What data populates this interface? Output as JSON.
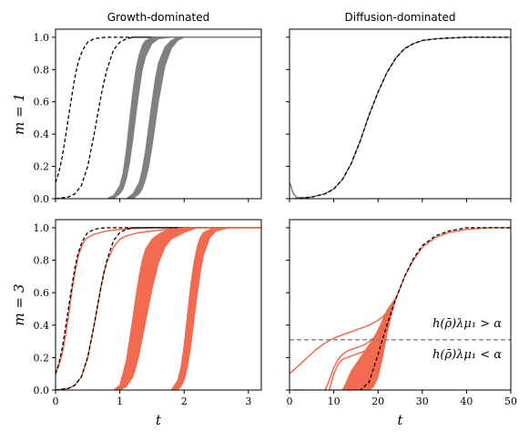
{
  "chart_data": [
    {
      "type": "line",
      "title": "Growth-dominated",
      "xlabel": "",
      "ylabel": "m = 1",
      "xlim": [
        0,
        3.2
      ],
      "ylim": [
        0,
        1.05
      ],
      "xticks": [
        "0",
        "1",
        "2",
        "3"
      ],
      "yticks": [
        "0.0",
        "0.2",
        "0.4",
        "0.6",
        "0.8",
        "1.0"
      ],
      "show_xtick_labels": false,
      "show_ytick_labels": true,
      "grid": false,
      "series_color": "#808080",
      "series": [
        {
          "style": "dashed",
          "color": "#000000",
          "x": [
            0,
            0.05,
            0.1,
            0.15,
            0.2,
            0.25,
            0.3,
            0.35,
            0.4,
            0.45,
            0.5,
            0.6,
            0.7,
            0.8,
            1.0,
            3.2
          ],
          "y": [
            0.1,
            0.16,
            0.25,
            0.37,
            0.5,
            0.63,
            0.75,
            0.84,
            0.9,
            0.94,
            0.97,
            0.99,
            0.997,
            1.0,
            1.0,
            1.0
          ]
        },
        {
          "style": "dashed",
          "color": "#000000",
          "x": [
            0,
            0.2,
            0.3,
            0.4,
            0.5,
            0.6,
            0.7,
            0.75,
            0.8,
            0.9,
            1.0,
            1.1,
            1.2,
            1.4,
            3.2
          ],
          "y": [
            0.0,
            0.01,
            0.03,
            0.08,
            0.2,
            0.4,
            0.62,
            0.72,
            0.8,
            0.92,
            0.97,
            0.99,
            1.0,
            1.0,
            1.0
          ]
        },
        {
          "style": "band",
          "color": "#808080",
          "x": [
            0,
            0.8,
            0.9,
            1.0,
            1.05,
            1.1,
            1.15,
            1.2,
            1.25,
            1.3,
            1.35,
            1.4,
            1.5,
            1.6,
            1.8,
            3.2
          ],
          "y_low": [
            0,
            0.0,
            0.0,
            0.03,
            0.06,
            0.12,
            0.22,
            0.36,
            0.52,
            0.67,
            0.8,
            0.88,
            0.96,
            0.99,
            1.0,
            1.0
          ],
          "y_high": [
            0,
            0.0,
            0.02,
            0.08,
            0.16,
            0.3,
            0.48,
            0.66,
            0.8,
            0.89,
            0.95,
            0.98,
            1.0,
            1.0,
            1.0,
            1.0
          ]
        },
        {
          "style": "band",
          "color": "#808080",
          "x": [
            0,
            1.1,
            1.2,
            1.3,
            1.35,
            1.4,
            1.45,
            1.5,
            1.55,
            1.6,
            1.7,
            1.8,
            1.9,
            2.0,
            2.2,
            3.2
          ],
          "y_low": [
            0,
            0.0,
            0.0,
            0.03,
            0.06,
            0.12,
            0.2,
            0.32,
            0.46,
            0.6,
            0.82,
            0.93,
            0.98,
            1.0,
            1.0,
            1.0
          ],
          "y_high": [
            0,
            0.0,
            0.03,
            0.1,
            0.18,
            0.3,
            0.45,
            0.6,
            0.74,
            0.84,
            0.94,
            0.98,
            1.0,
            1.0,
            1.0,
            1.0
          ]
        }
      ]
    },
    {
      "type": "line",
      "title": "Diffusion-dominated",
      "xlabel": "",
      "ylabel": "",
      "xlim": [
        0,
        50
      ],
      "ylim": [
        0,
        1.05
      ],
      "xticks": [
        "0",
        "10",
        "20",
        "30",
        "40",
        "50"
      ],
      "yticks": [
        "0.0",
        "0.2",
        "0.4",
        "0.6",
        "0.8",
        "1.0"
      ],
      "show_xtick_labels": false,
      "show_ytick_labels": false,
      "grid": false,
      "series": [
        {
          "style": "solid",
          "color": "#808080",
          "x": [
            0,
            0.3,
            0.6,
            1,
            1.5,
            2,
            3,
            5,
            8,
            10,
            12,
            14,
            16,
            18,
            20,
            22,
            24,
            26,
            28,
            30,
            33,
            36,
            40,
            45,
            50
          ],
          "y": [
            0.1,
            0.08,
            0.05,
            0.025,
            0.012,
            0.006,
            0.006,
            0.01,
            0.03,
            0.06,
            0.12,
            0.22,
            0.36,
            0.52,
            0.66,
            0.78,
            0.87,
            0.93,
            0.96,
            0.98,
            0.99,
            0.995,
            1.0,
            1.0,
            1.0
          ]
        },
        {
          "style": "dashed",
          "color": "#000000",
          "x": [
            1,
            3,
            5,
            8,
            10,
            12,
            14,
            16,
            18,
            20,
            22,
            24,
            26,
            28,
            30,
            33,
            36,
            40,
            45,
            50
          ],
          "y": [
            0.0,
            0.004,
            0.01,
            0.03,
            0.06,
            0.12,
            0.22,
            0.36,
            0.52,
            0.66,
            0.78,
            0.87,
            0.93,
            0.96,
            0.98,
            0.99,
            0.995,
            1.0,
            1.0,
            1.0
          ]
        }
      ]
    },
    {
      "type": "line",
      "title": "",
      "xlabel": "t",
      "ylabel": "m = 3",
      "xlim": [
        0,
        3.2
      ],
      "ylim": [
        0,
        1.05
      ],
      "xticks": [
        "0",
        "1",
        "2",
        "3"
      ],
      "yticks": [
        "0.0",
        "0.2",
        "0.4",
        "0.6",
        "0.8",
        "1.0"
      ],
      "show_xtick_labels": true,
      "show_ytick_labels": true,
      "grid": false,
      "series_color": "#f26a4f",
      "series": [
        {
          "style": "solid",
          "color": "#f26a4f",
          "x": [
            0,
            0.05,
            0.1,
            0.15,
            0.2,
            0.25,
            0.3,
            0.35,
            0.4,
            0.45,
            0.5,
            0.6,
            0.7,
            0.8,
            1.0,
            1.2,
            1.5,
            3.2
          ],
          "y": [
            0.1,
            0.15,
            0.22,
            0.32,
            0.45,
            0.6,
            0.72,
            0.82,
            0.88,
            0.92,
            0.94,
            0.96,
            0.97,
            0.98,
            0.99,
            0.995,
            1.0,
            1.0
          ]
        },
        {
          "style": "dashed",
          "color": "#000000",
          "x": [
            0,
            0.05,
            0.1,
            0.15,
            0.2,
            0.25,
            0.3,
            0.35,
            0.4,
            0.45,
            0.5,
            0.6,
            0.7,
            0.8,
            1.0,
            3.2
          ],
          "y": [
            0.1,
            0.16,
            0.25,
            0.37,
            0.5,
            0.63,
            0.75,
            0.84,
            0.9,
            0.94,
            0.97,
            0.99,
            0.997,
            1.0,
            1.0,
            1.0
          ]
        },
        {
          "style": "solid",
          "color": "#f26a4f",
          "x": [
            0,
            0.2,
            0.3,
            0.4,
            0.5,
            0.6,
            0.7,
            0.75,
            0.8,
            0.9,
            1.0,
            1.1,
            1.3,
            1.6,
            2.0,
            3.2
          ],
          "y": [
            0.0,
            0.01,
            0.03,
            0.08,
            0.2,
            0.4,
            0.62,
            0.72,
            0.79,
            0.88,
            0.93,
            0.95,
            0.97,
            0.985,
            1.0,
            1.0
          ]
        },
        {
          "style": "dashed",
          "color": "#000000",
          "x": [
            0,
            0.2,
            0.3,
            0.4,
            0.5,
            0.6,
            0.7,
            0.75,
            0.8,
            0.9,
            1.0,
            1.1,
            1.2,
            1.4,
            3.2
          ],
          "y": [
            0.0,
            0.01,
            0.03,
            0.08,
            0.2,
            0.4,
            0.62,
            0.72,
            0.8,
            0.92,
            0.97,
            0.99,
            1.0,
            1.0,
            1.0
          ]
        },
        {
          "style": "band",
          "color": "#f26a4f",
          "x": [
            0,
            0.9,
            1.0,
            1.1,
            1.2,
            1.25,
            1.3,
            1.35,
            1.4,
            1.5,
            1.6,
            1.7,
            1.8,
            2.0,
            2.2,
            3.2
          ],
          "y_low": [
            0,
            0.0,
            0.0,
            0.02,
            0.08,
            0.14,
            0.22,
            0.32,
            0.42,
            0.62,
            0.78,
            0.88,
            0.93,
            0.97,
            1.0,
            1.0
          ],
          "y_high": [
            0,
            0.0,
            0.03,
            0.18,
            0.44,
            0.58,
            0.7,
            0.8,
            0.87,
            0.93,
            0.96,
            0.98,
            0.99,
            1.0,
            1.0,
            1.0
          ]
        },
        {
          "style": "band",
          "color": "#f26a4f",
          "x": [
            0,
            1.8,
            1.9,
            1.95,
            2.0,
            2.05,
            2.1,
            2.15,
            2.2,
            2.25,
            2.3,
            2.4,
            2.5,
            2.7,
            3.2
          ],
          "y_low": [
            0,
            0.0,
            0.0,
            0.02,
            0.06,
            0.14,
            0.26,
            0.42,
            0.58,
            0.72,
            0.83,
            0.94,
            0.98,
            1.0,
            1.0
          ],
          "y_high": [
            0,
            0.0,
            0.06,
            0.14,
            0.28,
            0.46,
            0.64,
            0.78,
            0.88,
            0.94,
            0.97,
            0.99,
            1.0,
            1.0,
            1.0
          ]
        }
      ]
    },
    {
      "type": "line",
      "title": "",
      "xlabel": "t",
      "ylabel": "",
      "xlim": [
        0,
        50
      ],
      "ylim": [
        0,
        1.05
      ],
      "xticks": [
        "0",
        "10",
        "20",
        "30",
        "40",
        "50"
      ],
      "yticks": [
        "0.0",
        "0.2",
        "0.4",
        "0.6",
        "0.8",
        "1.0"
      ],
      "show_xtick_labels": true,
      "show_ytick_labels": false,
      "grid": false,
      "threshold_y": 0.31,
      "annotation_above": "h(ρ̄)λμ₁ > α",
      "annotation_below": "h(ρ̄)λμ₁ < α",
      "series": [
        {
          "style": "solid",
          "color": "#f26a4f",
          "x": [
            0,
            2,
            4,
            6,
            8,
            10,
            12,
            14,
            16,
            18,
            20,
            21,
            22,
            23,
            24
          ],
          "y": [
            0.1,
            0.15,
            0.2,
            0.25,
            0.29,
            0.32,
            0.34,
            0.36,
            0.38,
            0.4,
            0.43,
            0.45,
            0.48,
            0.52,
            0.56
          ]
        },
        {
          "style": "solid",
          "color": "#f26a4f",
          "x": [
            8,
            9,
            10,
            11,
            12,
            13,
            14,
            15,
            16,
            17,
            18,
            19,
            20,
            21,
            22,
            23,
            24
          ],
          "y": [
            0.0,
            0.06,
            0.14,
            0.19,
            0.22,
            0.24,
            0.25,
            0.26,
            0.27,
            0.28,
            0.3,
            0.32,
            0.36,
            0.4,
            0.45,
            0.5,
            0.56
          ]
        },
        {
          "style": "solid",
          "color": "#f26a4f",
          "x": [
            9,
            10,
            11,
            12,
            13,
            14,
            15,
            16,
            17,
            18,
            19,
            20,
            21,
            22,
            23,
            24
          ],
          "y": [
            0.0,
            0.1,
            0.16,
            0.19,
            0.2,
            0.21,
            0.22,
            0.23,
            0.24,
            0.26,
            0.28,
            0.32,
            0.37,
            0.43,
            0.49,
            0.56
          ]
        },
        {
          "style": "band",
          "color": "#f26a4f",
          "x": [
            12,
            13,
            14,
            15,
            16,
            17,
            18,
            19,
            20,
            21,
            22,
            23,
            24
          ],
          "y_low": [
            0.0,
            0.0,
            0.0,
            0.0,
            0.0,
            0.0,
            0.0,
            0.02,
            0.08,
            0.2,
            0.34,
            0.46,
            0.56
          ],
          "y_high": [
            0.0,
            0.06,
            0.12,
            0.16,
            0.2,
            0.24,
            0.28,
            0.32,
            0.37,
            0.43,
            0.49,
            0.53,
            0.57
          ]
        },
        {
          "style": "solid",
          "color": "#f26a4f",
          "x": [
            24,
            26,
            28,
            30,
            33,
            36,
            40,
            45,
            50
          ],
          "y": [
            0.56,
            0.7,
            0.8,
            0.88,
            0.94,
            0.97,
            0.99,
            1.0,
            1.0
          ]
        },
        {
          "style": "dashed",
          "color": "#000000",
          "x": [
            1,
            3,
            5,
            8,
            10,
            12,
            14,
            16,
            18,
            20,
            22,
            24,
            26,
            28,
            30,
            33,
            36,
            40,
            45,
            50
          ],
          "y": [
            0.0,
            0.0,
            0.0,
            0.0,
            0.0,
            0.0,
            0.0,
            0.0,
            0.05,
            0.22,
            0.4,
            0.56,
            0.7,
            0.81,
            0.89,
            0.95,
            0.98,
            1.0,
            1.0,
            1.0
          ]
        }
      ]
    }
  ]
}
